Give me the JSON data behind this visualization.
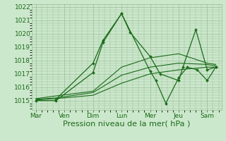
{
  "background_color": "#cce8cc",
  "grid_color": "#99bb99",
  "line_color": "#1a6b1a",
  "xlabel": "Pression niveau de la mer( hPa )",
  "xlabel_fontsize": 8,
  "tick_fontsize": 6.5,
  "ylim": [
    1014.3,
    1022.2
  ],
  "yticks": [
    1015,
    1016,
    1017,
    1018,
    1019,
    1020,
    1021,
    1022
  ],
  "x_labels": [
    "Mar",
    "Ven",
    "Dim",
    "Lun",
    "Mer",
    "Jeu",
    "Sam"
  ],
  "x_positions": [
    0,
    1,
    2,
    3,
    4,
    5,
    6
  ],
  "xlim": [
    -0.15,
    6.5
  ],
  "lines": [
    {
      "x": [
        0,
        0.7,
        2.0,
        2.35,
        3.0,
        3.3,
        4.0,
        4.35,
        5.0,
        5.15,
        5.6,
        6.0,
        6.3
      ],
      "y": [
        1015.0,
        1015.0,
        1017.1,
        1019.35,
        1021.5,
        1020.1,
        1018.3,
        1017.0,
        1016.5,
        1017.5,
        1020.3,
        1017.3,
        1017.5
      ],
      "has_markers": true,
      "lw": 0.9
    },
    {
      "x": [
        0.7,
        2.0,
        2.35,
        3.0,
        4.0,
        4.2,
        4.55,
        5.0,
        5.3,
        5.65,
        6.0,
        6.3
      ],
      "y": [
        1015.1,
        1017.8,
        1019.5,
        1021.5,
        1017.2,
        1016.5,
        1014.8,
        1016.7,
        1017.5,
        1017.3,
        1016.5,
        1017.5
      ],
      "has_markers": true,
      "lw": 0.9
    },
    {
      "x": [
        0,
        0.7,
        2.0,
        3.0,
        4.0,
        5.0,
        6.0,
        6.3
      ],
      "y": [
        1015.05,
        1015.15,
        1015.4,
        1016.3,
        1017.0,
        1017.3,
        1017.5,
        1017.5
      ],
      "has_markers": false,
      "lw": 0.8
    },
    {
      "x": [
        0,
        0.7,
        2.0,
        3.0,
        4.0,
        5.0,
        6.0,
        6.3
      ],
      "y": [
        1015.1,
        1015.2,
        1015.6,
        1016.9,
        1017.5,
        1017.8,
        1017.7,
        1017.6
      ],
      "has_markers": false,
      "lw": 0.8
    },
    {
      "x": [
        0,
        0.7,
        2.0,
        3.0,
        4.0,
        5.0,
        6.0,
        6.3
      ],
      "y": [
        1015.15,
        1015.35,
        1015.7,
        1017.5,
        1018.2,
        1018.5,
        1017.8,
        1017.7
      ],
      "has_markers": false,
      "lw": 0.8
    }
  ]
}
